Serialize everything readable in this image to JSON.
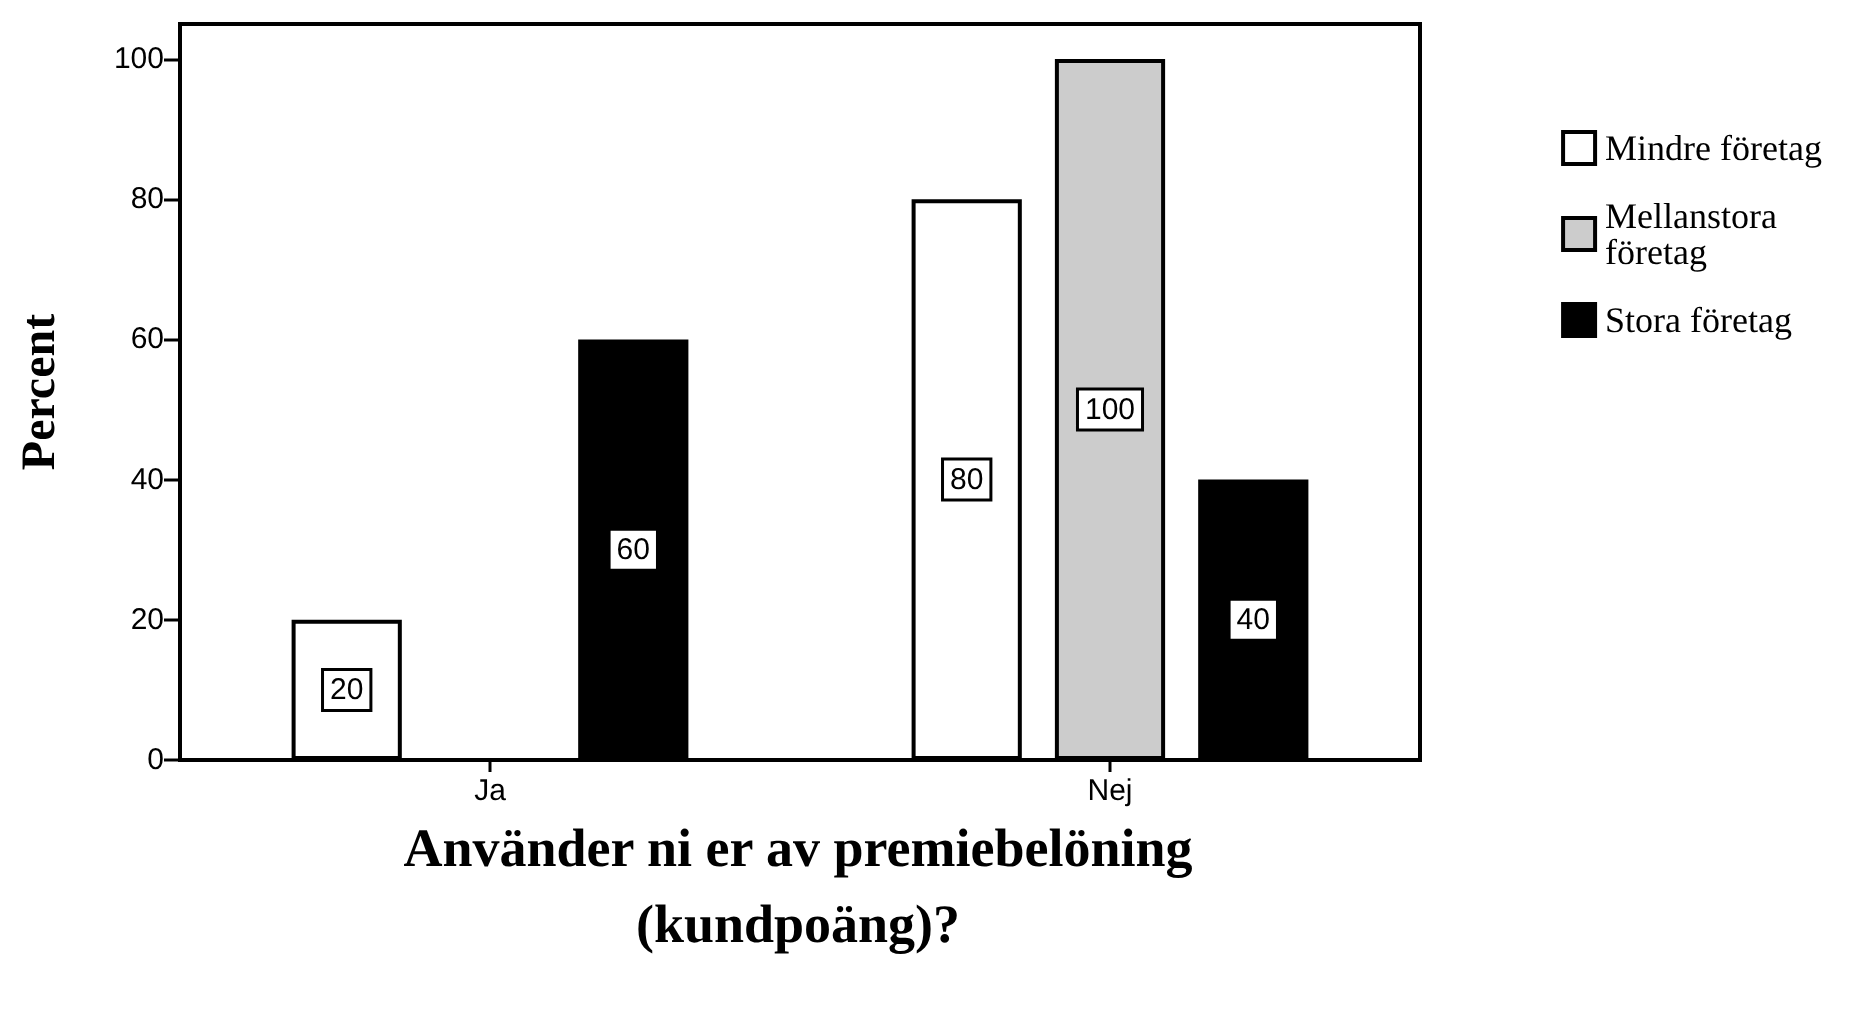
{
  "chart_data": {
    "type": "bar",
    "xlabel": "Använder ni er av premiebelöning (kundpoäng)?",
    "ylabel": "Percent",
    "categories": [
      "Ja",
      "Nej"
    ],
    "series": [
      {
        "name": "Mindre företag",
        "color": "#ffffff",
        "values": [
          20,
          80
        ],
        "value_labels": [
          "20",
          "80"
        ]
      },
      {
        "name": "Mellanstora företag",
        "color": "#cccccc",
        "values": [
          null,
          100
        ],
        "value_labels": [
          null,
          "100"
        ]
      },
      {
        "name": "Stora företag",
        "color": "#000000",
        "values": [
          60,
          40
        ],
        "value_labels": [
          "60",
          "40"
        ]
      }
    ],
    "ylim": [
      0,
      105
    ],
    "yticks": [
      0,
      20,
      40,
      60,
      80,
      100
    ],
    "grid": false,
    "legend": "right"
  }
}
